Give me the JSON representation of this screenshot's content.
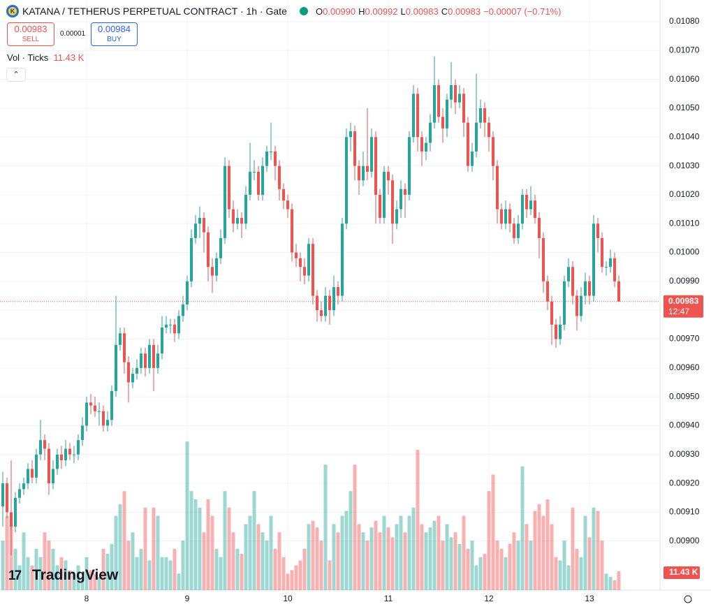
{
  "header": {
    "title": "KATANA / TETHERUS PERPETUAL CONTRACT · 1h · Gate",
    "ohlc": [
      {
        "key": "O",
        "value": "0.00990"
      },
      {
        "key": "H",
        "value": "0.00992"
      },
      {
        "key": "L",
        "value": "0.00983"
      },
      {
        "key": "C",
        "value": "0.00983"
      }
    ],
    "change": "−0.00007 (−0.71%)"
  },
  "trade": {
    "sell": {
      "price": "0.00983",
      "label": "SELL"
    },
    "spread": "0.00001",
    "buy": {
      "price": "0.00984",
      "label": "BUY"
    }
  },
  "volume_legend": {
    "label": "Vol · Ticks",
    "value": "11.43 K"
  },
  "logo": "TradingView",
  "chart_data": {
    "type": "candlestick",
    "categories": [
      null,
      null,
      null,
      null,
      null,
      null,
      null,
      null,
      null,
      null,
      null,
      null,
      null,
      null,
      null,
      null,
      null,
      null,
      null,
      null,
      "8",
      null,
      null,
      null,
      null,
      null,
      null,
      null,
      null,
      null,
      null,
      null,
      null,
      null,
      null,
      null,
      null,
      null,
      null,
      null,
      null,
      null,
      null,
      null,
      "9",
      null,
      null,
      null,
      null,
      null,
      null,
      null,
      null,
      null,
      null,
      null,
      null,
      null,
      null,
      null,
      null,
      null,
      null,
      null,
      null,
      null,
      null,
      null,
      "10",
      null,
      null,
      null,
      null,
      null,
      null,
      null,
      null,
      null,
      null,
      null,
      null,
      null,
      null,
      null,
      null,
      null,
      null,
      null,
      null,
      null,
      null,
      null,
      "11",
      null,
      null,
      null,
      null,
      null,
      null,
      null,
      null,
      null,
      null,
      null,
      null,
      null,
      null,
      null,
      null,
      null,
      null,
      null,
      null,
      null,
      null,
      null,
      "12",
      null,
      null,
      null,
      null,
      null,
      null,
      null,
      null,
      null,
      null,
      null,
      null,
      null,
      null,
      null,
      null,
      null,
      null,
      null,
      null,
      null,
      null,
      null,
      "13",
      null,
      null,
      null,
      null,
      null,
      null,
      null
    ],
    "open": [
      0.00912,
      0.0092,
      0.0091,
      0.00905,
      0.00915,
      0.00918,
      0.0092,
      0.00925,
      0.00922,
      0.0093,
      0.00935,
      0.00932,
      0.0092,
      0.00925,
      0.0093,
      0.00928,
      0.00932,
      0.0093,
      0.0093,
      0.00935,
      0.0094,
      0.00948,
      0.00947,
      0.00945,
      0.00945,
      0.0094,
      0.00942,
      0.00952,
      0.00968,
      0.00972,
      0.00962,
      0.00955,
      0.00958,
      0.0096,
      0.00965,
      0.0096,
      0.00968,
      0.0096,
      0.00965,
      0.00974,
      0.00975,
      0.00975,
      0.00972,
      0.00978,
      0.00982,
      0.0099,
      0.01005,
      0.0101,
      0.01012,
      0.01007,
      0.00995,
      0.00992,
      0.00998,
      0.01005,
      0.0103,
      0.01015,
      0.0101,
      0.01012,
      0.0101,
      0.0102,
      0.01028,
      0.01028,
      0.0102,
      0.0103,
      0.01035,
      0.01035,
      0.0103,
      0.01022,
      0.01018,
      0.01015,
      0.01,
      0.00998,
      0.00995,
      0.00992,
      0.01003,
      0.00985,
      0.0098,
      0.00978,
      0.00985,
      0.0098,
      0.00988,
      0.00985,
      0.0101,
      0.0104,
      0.01042,
      0.0103,
      0.01025,
      0.0103,
      0.01028,
      0.0104,
      0.0102,
      0.01012,
      0.01028,
      0.01025,
      0.0101,
      0.01015,
      0.01022,
      0.0102,
      0.0104,
      0.01055,
      0.0104,
      0.01035,
      0.01038,
      0.01045,
      0.01058,
      0.01047,
      0.01043,
      0.01053,
      0.01058,
      0.01052,
      0.01055,
      0.01045,
      0.0103,
      0.01035,
      0.01045,
      0.0105,
      0.01045,
      0.0104,
      0.0103,
      0.01015,
      0.0101,
      0.01015,
      0.0101,
      0.01005,
      0.0101,
      0.0102,
      0.01015,
      0.01018,
      0.01012,
      0.01005,
      0.0099,
      0.00983,
      0.00975,
      0.0097,
      0.00975,
      0.0099,
      0.00995,
      0.00985,
      0.00978,
      0.00985,
      0.0099,
      0.00985,
      0.0101,
      0.01005,
      0.00995,
      0.00995,
      0.00998,
      0.0099
    ],
    "high": [
      0.00924,
      0.00922,
      0.00928,
      0.00917,
      0.0092,
      0.00922,
      0.00927,
      0.00928,
      0.00932,
      0.00942,
      0.00937,
      0.00934,
      0.00928,
      0.00932,
      0.00933,
      0.00935,
      0.00934,
      0.00933,
      0.00937,
      0.00943,
      0.0095,
      0.00951,
      0.0095,
      0.00948,
      0.00947,
      0.00945,
      0.00954,
      0.00985,
      0.00974,
      0.00974,
      0.00964,
      0.0096,
      0.00963,
      0.00967,
      0.00967,
      0.0097,
      0.0097,
      0.00968,
      0.00978,
      0.00978,
      0.00977,
      0.00977,
      0.0098,
      0.00985,
      0.00992,
      0.01008,
      0.01013,
      0.01016,
      0.01014,
      0.01009,
      0.00998,
      0.01,
      0.01008,
      0.01033,
      0.01032,
      0.01018,
      0.01015,
      0.01014,
      0.01023,
      0.01038,
      0.01032,
      0.0103,
      0.01033,
      0.01037,
      0.01045,
      0.01037,
      0.01032,
      0.01024,
      0.0102,
      0.01017,
      0.01003,
      0.01,
      0.00998,
      0.01005,
      0.01005,
      0.00987,
      0.00983,
      0.00988,
      0.00987,
      0.00992,
      0.0099,
      0.01012,
      0.01043,
      0.01045,
      0.01044,
      0.01032,
      0.01035,
      0.0105,
      0.01043,
      0.01042,
      0.01022,
      0.0103,
      0.0103,
      0.01027,
      0.01018,
      0.01025,
      0.01024,
      0.01042,
      0.01058,
      0.01057,
      0.01042,
      0.0104,
      0.01048,
      0.01068,
      0.0106,
      0.0105,
      0.01055,
      0.01066,
      0.0106,
      0.01058,
      0.01057,
      0.01047,
      0.01038,
      0.01062,
      0.01053,
      0.01052,
      0.01047,
      0.01042,
      0.01032,
      0.01017,
      0.01018,
      0.01017,
      0.01012,
      0.01013,
      0.01022,
      0.01022,
      0.01023,
      0.0102,
      0.01014,
      0.01007,
      0.00992,
      0.00985,
      0.00977,
      0.00978,
      0.00992,
      0.00998,
      0.00997,
      0.00987,
      0.00988,
      0.00993,
      0.00992,
      0.01013,
      0.01012,
      0.01007,
      0.00997,
      0.01001,
      0.01,
      0.00992
    ],
    "low": [
      0.00905,
      0.00908,
      0.00895,
      0.00903,
      0.00913,
      0.00916,
      0.00918,
      0.0092,
      0.0092,
      0.00928,
      0.00928,
      0.00916,
      0.00918,
      0.00923,
      0.00925,
      0.00926,
      0.00928,
      0.00927,
      0.00928,
      0.00933,
      0.00938,
      0.00944,
      0.00943,
      0.0094,
      0.00938,
      0.00938,
      0.0094,
      0.0095,
      0.00966,
      0.00958,
      0.00948,
      0.00953,
      0.00956,
      0.00958,
      0.00957,
      0.00958,
      0.00952,
      0.00958,
      0.00963,
      0.00972,
      0.00972,
      0.00969,
      0.0097,
      0.00976,
      0.0098,
      0.00988,
      0.01003,
      0.01005,
      0.01,
      0.0099,
      0.00986,
      0.0099,
      0.00996,
      0.01003,
      0.01012,
      0.01007,
      0.01008,
      0.01005,
      0.01008,
      0.01018,
      0.01025,
      0.01018,
      0.01018,
      0.01028,
      0.01032,
      0.01025,
      0.01018,
      0.01015,
      0.01012,
      0.00997,
      0.00995,
      0.0099,
      0.00989,
      0.0099,
      0.00982,
      0.00976,
      0.00976,
      0.00976,
      0.00975,
      0.00978,
      0.00982,
      0.00983,
      0.01008,
      0.01035,
      0.01025,
      0.0102,
      0.01023,
      0.01025,
      0.01026,
      0.0101,
      0.0101,
      0.0101,
      0.0102,
      0.01003,
      0.01008,
      0.01012,
      0.01012,
      0.01018,
      0.01038,
      0.01035,
      0.0103,
      0.01032,
      0.01035,
      0.01043,
      0.01045,
      0.01038,
      0.0104,
      0.0105,
      0.01048,
      0.0105,
      0.0104,
      0.01028,
      0.01028,
      0.01033,
      0.01043,
      0.0104,
      0.01035,
      0.01025,
      0.0101,
      0.01008,
      0.01008,
      0.01007,
      0.01003,
      0.01003,
      0.01008,
      0.01012,
      0.01013,
      0.0101,
      0.00998,
      0.00986,
      0.0098,
      0.00968,
      0.00967,
      0.00968,
      0.00973,
      0.00988,
      0.00982,
      0.00973,
      0.00976,
      0.00982,
      0.00982,
      0.00983,
      0.01,
      0.00993,
      0.00992,
      0.00993,
      0.00988,
      0.00983
    ],
    "close": [
      0.0092,
      0.0091,
      0.00905,
      0.00915,
      0.00918,
      0.0092,
      0.00925,
      0.00922,
      0.0093,
      0.00935,
      0.00932,
      0.0092,
      0.00925,
      0.0093,
      0.00928,
      0.00932,
      0.0093,
      0.0093,
      0.00935,
      0.0094,
      0.00948,
      0.00947,
      0.00945,
      0.00945,
      0.0094,
      0.00942,
      0.00952,
      0.00968,
      0.00972,
      0.00962,
      0.00955,
      0.00958,
      0.0096,
      0.00965,
      0.0096,
      0.00968,
      0.0096,
      0.00965,
      0.00974,
      0.00975,
      0.00975,
      0.00972,
      0.00978,
      0.00982,
      0.0099,
      0.01005,
      0.0101,
      0.01012,
      0.01007,
      0.00995,
      0.00992,
      0.00998,
      0.01005,
      0.0103,
      0.01015,
      0.0101,
      0.01012,
      0.0101,
      0.0102,
      0.01028,
      0.01028,
      0.0102,
      0.0103,
      0.01035,
      0.01035,
      0.0103,
      0.01022,
      0.01018,
      0.01015,
      0.01,
      0.00998,
      0.00995,
      0.00992,
      0.01003,
      0.00985,
      0.0098,
      0.00978,
      0.00985,
      0.0098,
      0.00988,
      0.00985,
      0.0101,
      0.0104,
      0.01042,
      0.0103,
      0.01025,
      0.0103,
      0.01028,
      0.0104,
      0.0102,
      0.01012,
      0.01028,
      0.01025,
      0.0101,
      0.01015,
      0.01022,
      0.0102,
      0.0104,
      0.01055,
      0.0104,
      0.01035,
      0.01038,
      0.01045,
      0.01058,
      0.01047,
      0.01043,
      0.01053,
      0.01058,
      0.01052,
      0.01055,
      0.01045,
      0.0103,
      0.01035,
      0.01045,
      0.0105,
      0.01045,
      0.0104,
      0.0103,
      0.01015,
      0.0101,
      0.01015,
      0.0101,
      0.01005,
      0.0101,
      0.0102,
      0.01015,
      0.01018,
      0.01012,
      0.01005,
      0.0099,
      0.00983,
      0.00975,
      0.0097,
      0.00975,
      0.0099,
      0.00995,
      0.00985,
      0.00978,
      0.00985,
      0.0099,
      0.00985,
      0.0101,
      0.01005,
      0.00995,
      0.00995,
      0.00998,
      0.0099,
      0.00983
    ],
    "volume": [
      30000,
      45000,
      40000,
      25000,
      15000,
      35000,
      20000,
      15000,
      25000,
      20000,
      35000,
      30000,
      25000,
      15000,
      20000,
      18000,
      12000,
      10000,
      15000,
      8000,
      20000,
      12000,
      10000,
      8000,
      25000,
      22000,
      28000,
      45000,
      52000,
      60000,
      30000,
      35000,
      20000,
      25000,
      50000,
      18000,
      50000,
      45000,
      20000,
      20000,
      18000,
      25000,
      10000,
      30000,
      90000,
      60000,
      55000,
      50000,
      35000,
      55000,
      45000,
      25000,
      20000,
      60000,
      50000,
      35000,
      25000,
      22000,
      40000,
      45000,
      60000,
      40000,
      35000,
      30000,
      45000,
      25000,
      35000,
      20000,
      10000,
      12000,
      15000,
      18000,
      25000,
      40000,
      42000,
      38000,
      30000,
      76000,
      18000,
      40000,
      35000,
      45000,
      48000,
      60000,
      76000,
      40000,
      35000,
      30000,
      38000,
      42000,
      35000,
      45000,
      38000,
      32000,
      40000,
      45000,
      35000,
      45000,
      50000,
      85000,
      40000,
      35000,
      38000,
      42000,
      45000,
      30000,
      40000,
      32000,
      35000,
      28000,
      45000,
      25000,
      30000,
      15000,
      20000,
      22000,
      60000,
      70000,
      30000,
      25000,
      20000,
      28000,
      35000,
      30000,
      75000,
      40000,
      30000,
      48000,
      52000,
      45000,
      55000,
      40000,
      20000,
      18000,
      30000,
      15000,
      50000,
      25000,
      20000,
      45000,
      32000,
      50000,
      48000,
      30000,
      10000,
      8000,
      6000,
      11430
    ],
    "ylim": [
      0.00883,
      0.010875
    ],
    "yticks": [
      {
        "value": 0.009,
        "label": "0.00900"
      },
      {
        "value": 0.0091,
        "label": "0.00910"
      },
      {
        "value": 0.0092,
        "label": "0.00920"
      },
      {
        "value": 0.0093,
        "label": "0.00930"
      },
      {
        "value": 0.0094,
        "label": "0.00940"
      },
      {
        "value": 0.0095,
        "label": "0.00950"
      },
      {
        "value": 0.0096,
        "label": "0.00960"
      },
      {
        "value": 0.0097,
        "label": "0.00970"
      },
      {
        "value": 0.0098,
        "label": "0.00980"
      },
      {
        "value": 0.0099,
        "label": "0.00990"
      },
      {
        "value": 0.01,
        "label": "0.01000"
      },
      {
        "value": 0.0101,
        "label": "0.01010"
      },
      {
        "value": 0.0102,
        "label": "0.01020"
      },
      {
        "value": 0.0103,
        "label": "0.01030"
      },
      {
        "value": 0.0104,
        "label": "0.01040"
      },
      {
        "value": 0.0105,
        "label": "0.01050"
      },
      {
        "value": 0.0106,
        "label": "0.01060"
      },
      {
        "value": 0.0107,
        "label": "0.01070"
      },
      {
        "value": 0.0108,
        "label": "0.01080"
      }
    ],
    "volume_ylim": [
      0,
      110000
    ],
    "up_color": "#26a69a",
    "down_color": "#ef5350",
    "grid": true,
    "price_label": "0.00983",
    "countdown": "12:47",
    "volume_label": "11.43 K"
  }
}
